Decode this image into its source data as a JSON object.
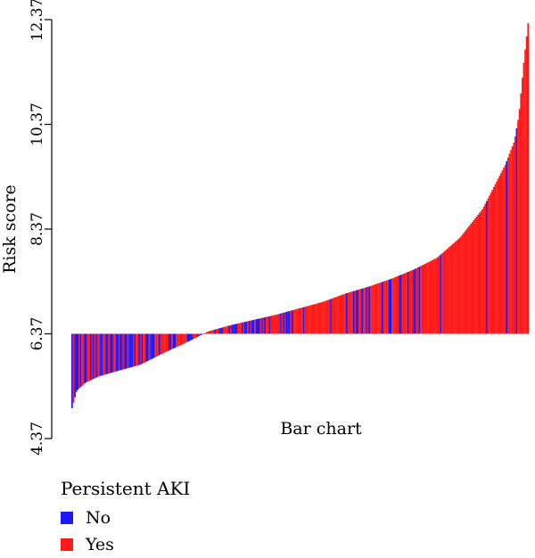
{
  "chart_data": {
    "type": "bar",
    "title": "",
    "xlabel": "Bar chart",
    "ylabel": "Risk score",
    "baseline": 6.37,
    "ylim": [
      4.37,
      12.37
    ],
    "yticks": [
      "4.37",
      "6.37",
      "8.37",
      "10.37",
      "12.37"
    ],
    "grid": false,
    "legend": {
      "title": "Persistent AKI",
      "placement": "bottom-left",
      "entries": [
        {
          "label": "No",
          "color": "#1a1aff"
        },
        {
          "label": "Yes",
          "color": "#ff1a1a"
        }
      ]
    },
    "n_bars": 320,
    "values_sorted_ascending_profile": [
      [
        0,
        4.95
      ],
      [
        0.01,
        5.28
      ],
      [
        0.03,
        5.44
      ],
      [
        0.06,
        5.56
      ],
      [
        0.1,
        5.66
      ],
      [
        0.15,
        5.78
      ],
      [
        0.2,
        6.0
      ],
      [
        0.25,
        6.2
      ],
      [
        0.3,
        6.42
      ],
      [
        0.35,
        6.54
      ],
      [
        0.4,
        6.64
      ],
      [
        0.45,
        6.74
      ],
      [
        0.5,
        6.86
      ],
      [
        0.55,
        6.98
      ],
      [
        0.6,
        7.14
      ],
      [
        0.65,
        7.27
      ],
      [
        0.7,
        7.42
      ],
      [
        0.75,
        7.6
      ],
      [
        0.8,
        7.82
      ],
      [
        0.85,
        8.2
      ],
      [
        0.9,
        8.75
      ],
      [
        0.95,
        9.6
      ],
      [
        0.97,
        10.05
      ],
      [
        0.98,
        10.55
      ],
      [
        0.99,
        11.5
      ],
      [
        1.0,
        12.3
      ]
    ],
    "series_colors": {
      "No": "#1a1aff",
      "Yes": "#ff1a1a"
    }
  }
}
